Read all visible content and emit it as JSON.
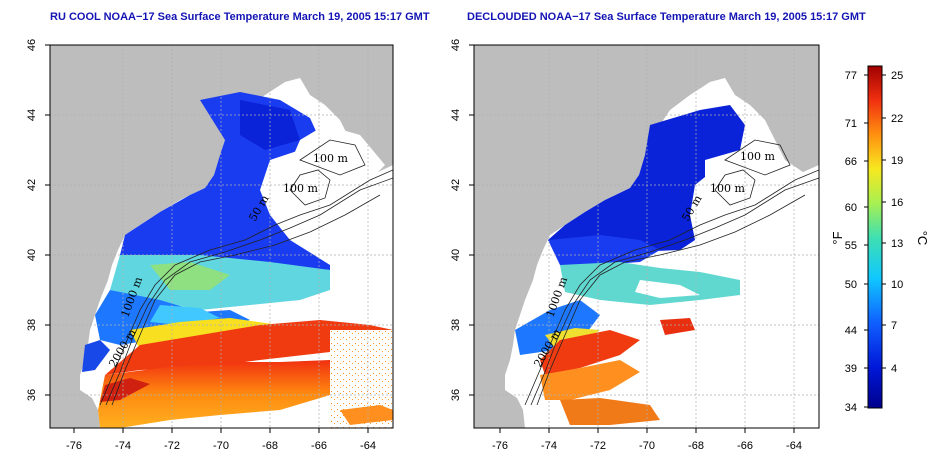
{
  "panels": [
    {
      "title": "RU COOL NOAA−17 Sea Surface Temperature March 19, 2005 15:17 GMT",
      "lon_ticks": [
        "-76",
        "-74",
        "-72",
        "-70",
        "-68",
        "-66",
        "-64"
      ],
      "lat_ticks": [
        "46",
        "44",
        "42",
        "40",
        "38",
        "36"
      ],
      "contour_labels": [
        "100 m",
        "100 m",
        "50 m",
        "1000 m",
        "2000 m"
      ]
    },
    {
      "title": "DECLOUDED NOAA−17 Sea Surface Temperature March 19, 2005 15:17 GMT",
      "lon_ticks": [
        "-76",
        "-74",
        "-72",
        "-70",
        "-68",
        "-66",
        "-64"
      ],
      "lat_ticks": [
        "46",
        "44",
        "42",
        "40",
        "38",
        "36"
      ],
      "contour_labels": [
        "100 m",
        "100 m",
        "50 m",
        "1000 m",
        "2000 m"
      ]
    }
  ],
  "colorbar": {
    "fahrenheit_ticks": [
      "77",
      "71",
      "66",
      "60",
      "55",
      "50",
      "44",
      "39",
      "34"
    ],
    "celsius_ticks": [
      "25",
      "22",
      "19",
      "16",
      "13",
      "10",
      "7",
      "4"
    ],
    "left_unit": "°F",
    "right_unit": "°C"
  },
  "colors": {
    "land": "#bdbdbd",
    "no_data": "#ffffff",
    "title": "#1414b4"
  }
}
